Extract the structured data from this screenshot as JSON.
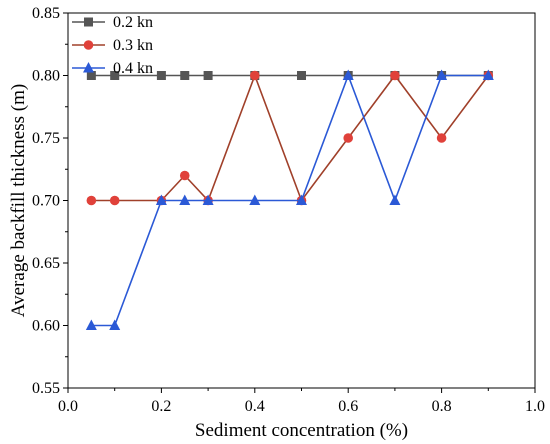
{
  "chart_data": {
    "type": "line",
    "title": "",
    "xlabel": "Sediment concentration (%)",
    "ylabel": "Average backfill thickness (m)",
    "xlim": [
      0.0,
      1.0
    ],
    "ylim": [
      0.55,
      0.85
    ],
    "x_ticks": [
      "0.0",
      "0.2",
      "0.4",
      "0.6",
      "0.8",
      "1.0"
    ],
    "y_ticks": [
      "0.55",
      "0.60",
      "0.65",
      "0.70",
      "0.75",
      "0.80",
      "0.85"
    ],
    "grid": false,
    "legend_position": "top-left",
    "x": [
      0.05,
      0.1,
      0.2,
      0.25,
      0.3,
      0.4,
      0.5,
      0.6,
      0.7,
      0.8,
      0.9
    ],
    "series": [
      {
        "name": "0.2 kn",
        "color": "#555555",
        "marker": "square",
        "values": [
          0.8,
          0.8,
          0.8,
          0.8,
          0.8,
          0.8,
          0.8,
          0.8,
          0.8,
          0.8,
          0.8
        ]
      },
      {
        "name": "0.3 kn",
        "color": "#a0402a",
        "marker_color": "#e0413a",
        "marker": "circle",
        "values": [
          0.7,
          0.7,
          0.7,
          0.72,
          0.7,
          0.8,
          0.7,
          0.75,
          0.8,
          0.75,
          0.8
        ]
      },
      {
        "name": "0.4 kn",
        "color": "#2b59d6",
        "marker": "triangle",
        "values": [
          0.6,
          0.6,
          0.7,
          0.7,
          0.7,
          0.7,
          0.7,
          0.8,
          0.7,
          0.8,
          0.8
        ]
      }
    ]
  }
}
